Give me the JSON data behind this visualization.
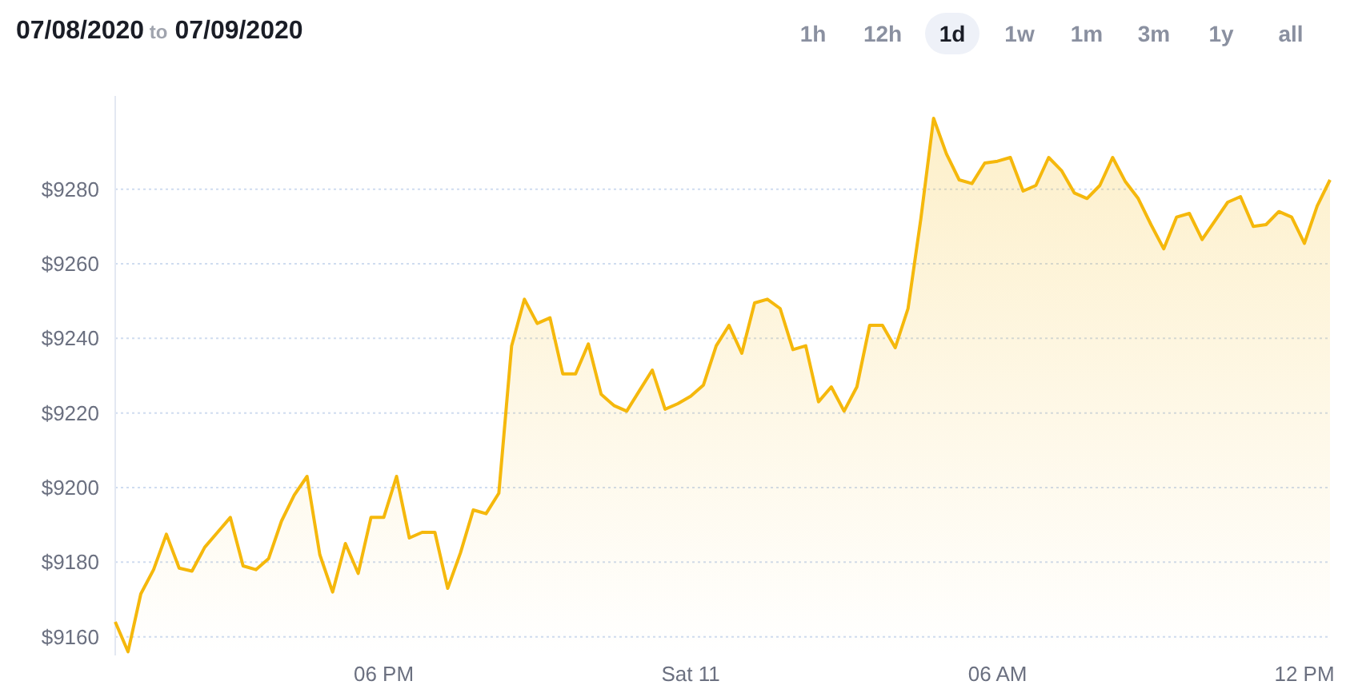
{
  "chart_data": {
    "type": "area",
    "title": "07/08/2020 to 07/09/2020",
    "annotations": [
      "1h",
      "12h",
      "1d",
      "1w",
      "1m",
      "3m",
      "1y",
      "all"
    ],
    "x": [
      "2020-07-10T12:45",
      "2020-07-10T13:00",
      "2020-07-10T13:15",
      "2020-07-10T13:30",
      "2020-07-10T13:45",
      "2020-07-10T14:00",
      "2020-07-10T14:15",
      "2020-07-10T14:30",
      "2020-07-10T14:45",
      "2020-07-10T15:00",
      "2020-07-10T15:15",
      "2020-07-10T15:30",
      "2020-07-10T15:45",
      "2020-07-10T16:00",
      "2020-07-10T16:15",
      "2020-07-10T16:30",
      "2020-07-10T16:45",
      "2020-07-10T17:00",
      "2020-07-10T17:15",
      "2020-07-10T17:30",
      "2020-07-10T17:45",
      "2020-07-10T18:00",
      "2020-07-10T18:15",
      "2020-07-10T18:30",
      "2020-07-10T18:45",
      "2020-07-10T19:00",
      "2020-07-10T19:15",
      "2020-07-10T19:30",
      "2020-07-10T19:45",
      "2020-07-10T20:00",
      "2020-07-10T20:15",
      "2020-07-10T20:30",
      "2020-07-10T20:45",
      "2020-07-10T21:00",
      "2020-07-10T21:15",
      "2020-07-10T21:30",
      "2020-07-10T21:45",
      "2020-07-10T22:00",
      "2020-07-10T22:15",
      "2020-07-10T22:30",
      "2020-07-10T22:45",
      "2020-07-10T23:00",
      "2020-07-10T23:15",
      "2020-07-10T23:30",
      "2020-07-10T23:45",
      "2020-07-11T00:00",
      "2020-07-11T00:15",
      "2020-07-11T00:30",
      "2020-07-11T00:45",
      "2020-07-11T01:00",
      "2020-07-11T01:15",
      "2020-07-11T01:30",
      "2020-07-11T01:45",
      "2020-07-11T02:00",
      "2020-07-11T02:15",
      "2020-07-11T02:30",
      "2020-07-11T02:45",
      "2020-07-11T03:00",
      "2020-07-11T03:15",
      "2020-07-11T03:30",
      "2020-07-11T03:45",
      "2020-07-11T04:00",
      "2020-07-11T04:15",
      "2020-07-11T04:30",
      "2020-07-11T04:45",
      "2020-07-11T05:00",
      "2020-07-11T05:15",
      "2020-07-11T05:30",
      "2020-07-11T05:45",
      "2020-07-11T06:00",
      "2020-07-11T06:15",
      "2020-07-11T06:30",
      "2020-07-11T06:45",
      "2020-07-11T07:00",
      "2020-07-11T07:15",
      "2020-07-11T07:30",
      "2020-07-11T07:45",
      "2020-07-11T08:00",
      "2020-07-11T08:15",
      "2020-07-11T08:30",
      "2020-07-11T08:45",
      "2020-07-11T09:00",
      "2020-07-11T09:15",
      "2020-07-11T09:30",
      "2020-07-11T09:45",
      "2020-07-11T10:00",
      "2020-07-11T10:15",
      "2020-07-11T10:30",
      "2020-07-11T10:45",
      "2020-07-11T11:00",
      "2020-07-11T11:15",
      "2020-07-11T11:30",
      "2020-07-11T11:45",
      "2020-07-11T12:00",
      "2020-07-11T12:15",
      "2020-07-11T12:30"
    ],
    "series": [
      {
        "color": "#f5b80c",
        "values": [
          9164,
          9156,
          9171.5,
          9178,
          9187.5,
          9178.4,
          9177.6,
          9184,
          9188,
          9192,
          9179,
          9178,
          9181,
          9191,
          9198,
          9203,
          9182,
          9172,
          9185,
          9177,
          9192,
          9192,
          9203,
          9186.5,
          9188,
          9188,
          9173,
          9182.5,
          9194,
          9193,
          9198.5,
          9238,
          9250.5,
          9244,
          9245.5,
          9230.5,
          9230.5,
          9238.5,
          9225,
          9222,
          9220.5,
          9226,
          9231.5,
          9221,
          9222.5,
          9224.5,
          9227.5,
          9238,
          9243.5,
          9236,
          9249.5,
          9250.5,
          9248,
          9237,
          9238,
          9223,
          9227,
          9220.5,
          9227,
          9243.5,
          9243.5,
          9237.5,
          9248,
          9272,
          9299,
          9289.5,
          9282.5,
          9281.5,
          9287,
          9287.5,
          9288.5,
          9279.5,
          9281,
          9288.5,
          9285,
          9279,
          9277.5,
          9281,
          9288.5,
          9282,
          9277.5,
          9270.5,
          9264,
          9272.5,
          9273.5,
          9266.5,
          9271.5,
          9276.5,
          9278,
          9270,
          9270.5,
          9274,
          9272.5,
          9265.5,
          9275.5,
          9282.5
        ]
      }
    ],
    "xlim": [
      "2020-07-10T12:45",
      "2020-07-11T12:30"
    ],
    "xticks": [
      {
        "value": "2020-07-10T18:00",
        "label": "06 PM"
      },
      {
        "value": "2020-07-11T00:00",
        "label": "Sat 11"
      },
      {
        "value": "2020-07-11T06:00",
        "label": "06 AM"
      },
      {
        "value": "2020-07-11T12:00",
        "label": "12 PM"
      }
    ],
    "yticks": [
      {
        "value": 9160,
        "label": "$9160"
      },
      {
        "value": 9180,
        "label": "$9180"
      },
      {
        "value": 9200,
        "label": "$9200"
      },
      {
        "value": 9220,
        "label": "$9220"
      },
      {
        "value": 9240,
        "label": "$9240"
      },
      {
        "value": 9260,
        "label": "$9260"
      },
      {
        "value": 9280,
        "label": "$9280"
      }
    ],
    "ylim": [
      9155,
      9305
    ],
    "grid": "y"
  }
}
